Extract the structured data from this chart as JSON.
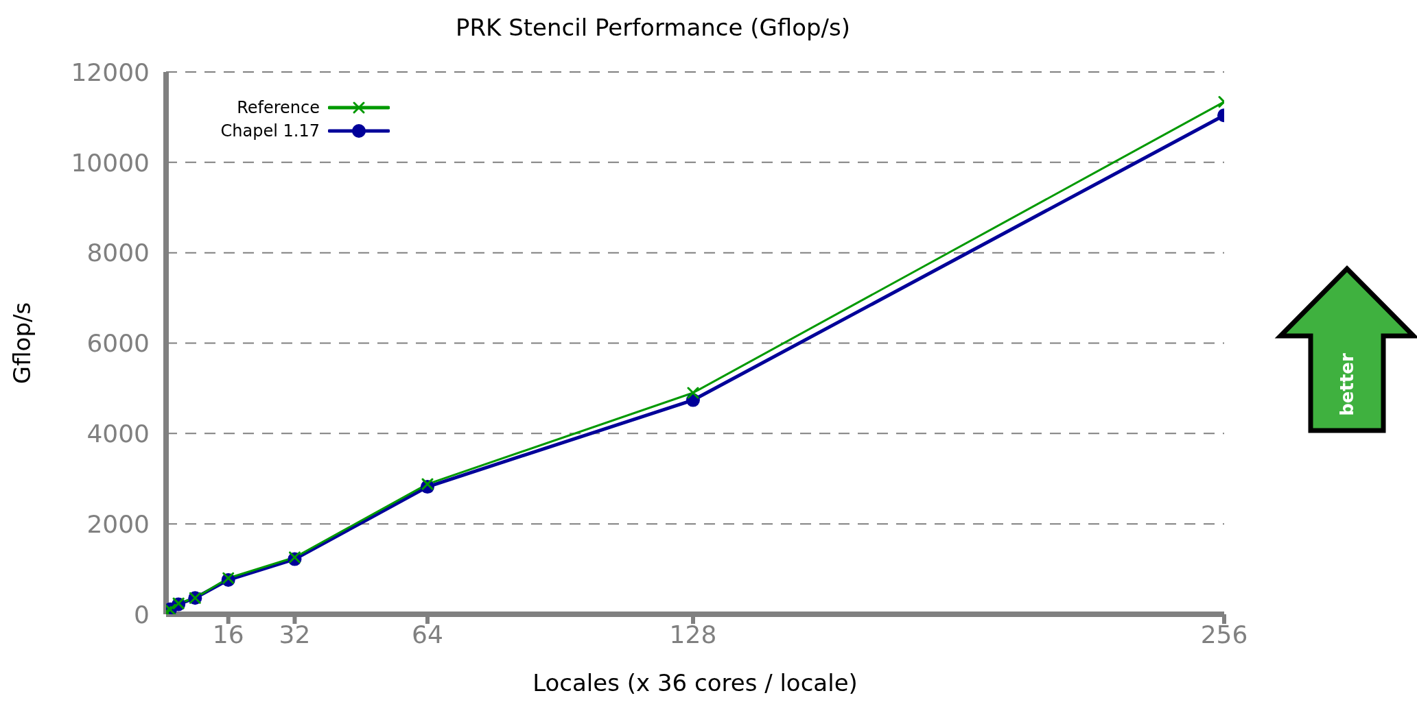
{
  "chart_data": {
    "type": "line",
    "title": "PRK Stencil Performance (Gflop/s)",
    "xlabel": "Locales (x 36 cores / locale)",
    "ylabel": "Gflop/s",
    "x": [
      1,
      2,
      4,
      8,
      16,
      32,
      64,
      128,
      256
    ],
    "series": [
      {
        "name": "Reference",
        "color": "#009900",
        "marker": "cross",
        "values": [
          50,
          100,
          240,
          360,
          800,
          1260,
          2880,
          4900,
          11340
        ]
      },
      {
        "name": "Chapel 1.17",
        "color": "#000099",
        "marker": "circle",
        "values": [
          60,
          110,
          220,
          360,
          760,
          1220,
          2820,
          4740,
          11040
        ]
      }
    ],
    "xlim": [
      1,
      256
    ],
    "xticks": [
      16,
      32,
      64,
      128,
      256
    ],
    "ylim": [
      0,
      12000
    ],
    "yticks": [
      0,
      2000,
      4000,
      6000,
      8000,
      10000,
      12000
    ],
    "grid": "y",
    "legend": "top left",
    "line_style": "solid",
    "annotations": [
      "better"
    ]
  }
}
